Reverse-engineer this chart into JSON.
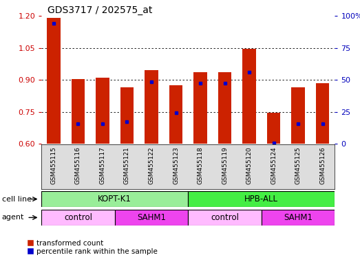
{
  "title": "GDS3717 / 202575_at",
  "samples": [
    "GSM455115",
    "GSM455116",
    "GSM455117",
    "GSM455121",
    "GSM455122",
    "GSM455123",
    "GSM455118",
    "GSM455119",
    "GSM455120",
    "GSM455124",
    "GSM455125",
    "GSM455126"
  ],
  "bar_heights": [
    1.19,
    0.905,
    0.91,
    0.865,
    0.945,
    0.875,
    0.935,
    0.935,
    1.045,
    0.745,
    0.865,
    0.885
  ],
  "blue_markers": [
    1.165,
    0.695,
    0.695,
    0.705,
    0.89,
    0.745,
    0.885,
    0.885,
    0.935,
    0.605,
    0.695,
    0.695
  ],
  "ylim_left": [
    0.6,
    1.2
  ],
  "yticks_left": [
    0.6,
    0.75,
    0.9,
    1.05,
    1.2
  ],
  "yticks_right": [
    0,
    25,
    50,
    75,
    100
  ],
  "ylabel_left_color": "#cc0000",
  "ylabel_right_color": "#0000bb",
  "bar_color": "#cc2200",
  "blue_color": "#0000cc",
  "bg_color": "#ffffff",
  "plot_bg_color": "#ffffff",
  "cell_line_groups": [
    {
      "label": "KOPT-K1",
      "start": 0,
      "end": 6,
      "color": "#99ee99"
    },
    {
      "label": "HPB-ALL",
      "start": 6,
      "end": 12,
      "color": "#44ee44"
    }
  ],
  "agent_groups": [
    {
      "label": "control",
      "start": 0,
      "end": 3,
      "color": "#ffbbff"
    },
    {
      "label": "SAHM1",
      "start": 3,
      "end": 6,
      "color": "#ee44ee"
    },
    {
      "label": "control",
      "start": 6,
      "end": 9,
      "color": "#ffbbff"
    },
    {
      "label": "SAHM1",
      "start": 9,
      "end": 12,
      "color": "#ee44ee"
    }
  ],
  "legend_red_label": "transformed count",
  "legend_blue_label": "percentile rank within the sample",
  "cell_line_label": "cell line",
  "agent_label": "agent",
  "tick_bg_color": "#dddddd"
}
